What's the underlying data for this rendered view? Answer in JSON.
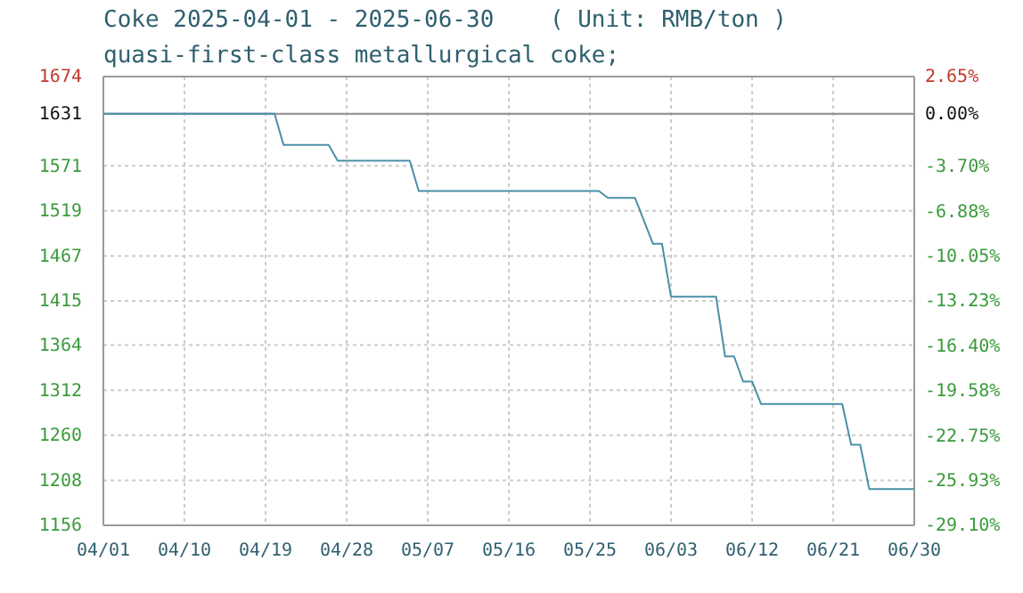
{
  "chart_data": {
    "type": "line",
    "title": "Coke 2025-04-01 - 2025-06-30    ( Unit: RMB/ton )",
    "subtitle": "quasi-first-class metallurgical coke;",
    "x": [
      "2025-04-01",
      "2025-04-20",
      "2025-04-21",
      "2025-04-26",
      "2025-04-27",
      "2025-05-05",
      "2025-05-06",
      "2025-05-26",
      "2025-05-27",
      "2025-05-30",
      "2025-06-01",
      "2025-06-02",
      "2025-06-03",
      "2025-06-08",
      "2025-06-09",
      "2025-06-10",
      "2025-06-11",
      "2025-06-12",
      "2025-06-13",
      "2025-06-22",
      "2025-06-23",
      "2025-06-24",
      "2025-06-25",
      "2025-06-30"
    ],
    "series": [
      {
        "color": "#4a90a8",
        "values": [
          1631,
          1631,
          1595,
          1595,
          1577,
          1577,
          1542,
          1542,
          1534,
          1534,
          1481,
          1481,
          1420,
          1420,
          1351,
          1351,
          1322,
          1322,
          1296,
          1296,
          1249,
          1249,
          1198,
          1198
        ]
      }
    ],
    "xlim": [
      "2025-04-01",
      "2025-06-30"
    ],
    "xticks": [
      {
        "value": "2025-04-01",
        "label": "04/01"
      },
      {
        "value": "2025-04-10",
        "label": "04/10"
      },
      {
        "value": "2025-04-19",
        "label": "04/19"
      },
      {
        "value": "2025-04-28",
        "label": "04/28"
      },
      {
        "value": "2025-05-07",
        "label": "05/07"
      },
      {
        "value": "2025-05-16",
        "label": "05/16"
      },
      {
        "value": "2025-05-25",
        "label": "05/25"
      },
      {
        "value": "2025-06-03",
        "label": "06/03"
      },
      {
        "value": "2025-06-12",
        "label": "06/12"
      },
      {
        "value": "2025-06-21",
        "label": "06/21"
      },
      {
        "value": "2025-06-30",
        "label": "06/30"
      }
    ],
    "ylim": [
      1156,
      1674
    ],
    "yticks": [
      1156,
      1208,
      1260,
      1312,
      1364,
      1415,
      1467,
      1519,
      1571,
      1631,
      1674
    ],
    "y2lim": [
      -29.1,
      2.65
    ],
    "y2ticks": [
      {
        "value": -29.1,
        "label": "-29.10%"
      },
      {
        "value": -25.93,
        "label": "-25.93%"
      },
      {
        "value": -22.75,
        "label": "-22.75%"
      },
      {
        "value": -19.58,
        "label": "-19.58%"
      },
      {
        "value": -16.4,
        "label": "-16.40%"
      },
      {
        "value": -13.23,
        "label": "-13.23%"
      },
      {
        "value": -10.05,
        "label": "-10.05%"
      },
      {
        "value": -6.88,
        "label": "-6.88%"
      },
      {
        "value": -3.7,
        "label": "-3.70%"
      },
      {
        "value": 0,
        "label": "0.00%"
      },
      {
        "value": 2.65,
        "label": "2.65%"
      }
    ],
    "ref_lines": [
      {
        "axis": "y",
        "value": 1631,
        "color": "#999999"
      }
    ],
    "grid": true,
    "marker": "none",
    "line_style": "solid"
  }
}
